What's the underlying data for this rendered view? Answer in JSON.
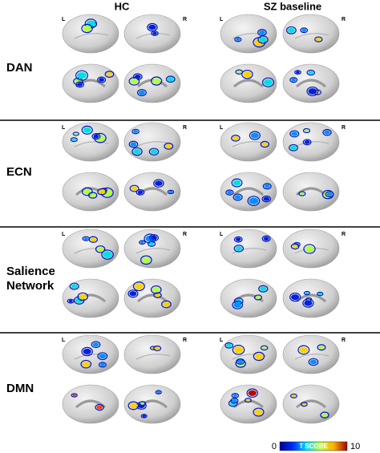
{
  "columns": [
    "HC",
    "SZ baseline"
  ],
  "rows": [
    {
      "label": "DAN"
    },
    {
      "label": "ECN"
    },
    {
      "label": "Salience Network"
    },
    {
      "label": "DMN"
    }
  ],
  "hemisphere_labels": [
    "L",
    "R"
  ],
  "colorbar": {
    "min": 0,
    "max": 10,
    "label": "T SCORE"
  }
}
